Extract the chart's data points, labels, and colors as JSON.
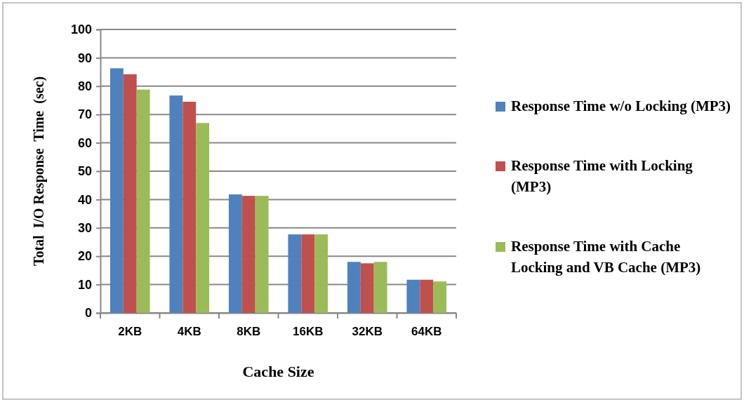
{
  "chart_data": {
    "type": "bar",
    "xlabel": "Cache Size",
    "ylabel": "Total  I/O Response  Time  (sec)",
    "categories": [
      "2KB",
      "4KB",
      "8KB",
      "16KB",
      "32KB",
      "64KB"
    ],
    "series": [
      {
        "name": "Response Time w/o Locking (MP3)",
        "color": "#4f81bd",
        "values": [
          86.3,
          76.7,
          41.8,
          27.7,
          18.0,
          11.7
        ]
      },
      {
        "name": "Response Time with Locking (MP3)",
        "color": "#c0504d",
        "values": [
          84.2,
          74.5,
          41.3,
          27.7,
          17.5,
          11.7
        ]
      },
      {
        "name": "Response Time with Cache Locking and VB Cache (MP3)",
        "color": "#9bbb59",
        "values": [
          78.8,
          67.0,
          41.3,
          27.7,
          18.0,
          11.1
        ]
      }
    ],
    "ylim": [
      0,
      100
    ],
    "yticks": [
      0,
      10,
      20,
      30,
      40,
      50,
      60,
      70,
      80,
      90,
      100
    ],
    "grid": "y",
    "legend": "right"
  }
}
